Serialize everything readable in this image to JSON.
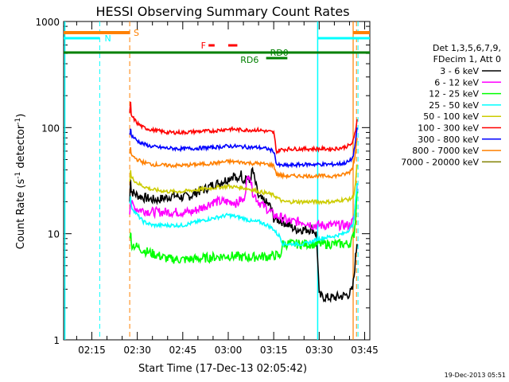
{
  "chart_data": {
    "type": "line",
    "title": "HESSI Observing Summary Count Rates",
    "xlabel": "Start Time (17-Dec-13 02:05:42)",
    "ylabel_main": "Count Rate (s",
    "ylabel_sup1": "-1",
    "ylabel_mid": " detector",
    "ylabel_sup2": "-1",
    "ylabel_end": ")",
    "yscale": "log",
    "ylim": [
      1,
      1000
    ],
    "xlim_minutes": [
      5.7,
      106.7
    ],
    "xticks": [
      {
        "m": 15,
        "label": "02:15"
      },
      {
        "m": 30,
        "label": "02:30"
      },
      {
        "m": 45,
        "label": "02:45"
      },
      {
        "m": 60,
        "label": "03:00"
      },
      {
        "m": 75,
        "label": "03:15"
      },
      {
        "m": 90,
        "label": "03:30"
      },
      {
        "m": 105,
        "label": "03:45"
      }
    ],
    "yticks": [
      {
        "v": 1,
        "label": "1"
      },
      {
        "v": 10,
        "label": "10"
      },
      {
        "v": 100,
        "label": "100"
      },
      {
        "v": 1000,
        "label": "1000"
      }
    ],
    "legend": {
      "header1": "Det 1,3,5,6,7,9,",
      "header2": "FDecim 1, Att 0",
      "placement": "right"
    },
    "footer_date": "19-Dec-2013 05:51",
    "series": [
      {
        "name": "3 - 6 keV",
        "color": "#000000",
        "x": [
          27.5,
          27.8,
          28,
          29,
          30,
          32,
          35,
          37,
          40,
          42,
          45,
          48,
          50,
          52,
          55,
          57,
          60,
          62,
          63,
          64,
          65,
          66,
          67,
          68,
          70,
          72,
          73,
          74,
          75,
          78,
          80,
          82,
          85,
          87,
          88,
          89,
          89.5,
          90,
          92,
          95,
          98,
          100,
          101,
          101.5,
          102,
          102.5
        ],
        "y": [
          20,
          35,
          25,
          24,
          23,
          22,
          21,
          21,
          22,
          23,
          22,
          23,
          25,
          26,
          29,
          30,
          33,
          36,
          30,
          38,
          32,
          35,
          30,
          40,
          22,
          20,
          19,
          18,
          14,
          13,
          12,
          11,
          11,
          11,
          11,
          10,
          6,
          2.6,
          2.5,
          2.5,
          2.6,
          2.7,
          3,
          4,
          6,
          8
        ]
      },
      {
        "name": "6 - 12 keV",
        "color": "#ff00ff",
        "x": [
          27.5,
          27.8,
          28,
          30,
          35,
          40,
          45,
          48,
          50,
          52,
          55,
          58,
          60,
          62,
          63,
          64,
          65,
          66,
          67,
          68,
          70,
          73,
          75,
          78,
          80,
          82,
          85,
          88,
          90,
          95,
          98,
          100,
          101,
          101.5,
          102,
          102.5
        ],
        "y": [
          16,
          22,
          19,
          17,
          16,
          16,
          16,
          16,
          17,
          18,
          20,
          20,
          20,
          20,
          19,
          21,
          20,
          30,
          38,
          25,
          20,
          17,
          15,
          14,
          13,
          13,
          13,
          12,
          12,
          12,
          12,
          12,
          13,
          14,
          20,
          28
        ]
      },
      {
        "name": "12 - 25 keV",
        "color": "#00ff00",
        "x": [
          27.5,
          27.8,
          28,
          30,
          32,
          35,
          40,
          45,
          50,
          55,
          60,
          65,
          68,
          70,
          73,
          75,
          76,
          77,
          78,
          80,
          85,
          88,
          90,
          95,
          98,
          100,
          101,
          101.5,
          102,
          102.5
        ],
        "y": [
          9,
          11,
          8,
          7.5,
          7,
          6.5,
          5.8,
          5.7,
          5.8,
          6,
          6.2,
          6,
          6,
          6.1,
          6.1,
          6.2,
          6.3,
          6,
          8,
          8,
          8,
          8,
          8,
          8,
          8,
          8,
          9,
          10,
          14,
          25
        ]
      },
      {
        "name": "25 - 50 keV",
        "color": "#00ffff",
        "x": [
          27.5,
          27.8,
          28,
          30,
          32,
          35,
          40,
          45,
          50,
          55,
          60,
          65,
          68,
          70,
          73,
          75,
          76,
          77,
          78,
          80,
          85,
          88,
          90,
          95,
          98,
          100,
          101,
          101.5,
          102,
          102.5
        ],
        "y": [
          20,
          22,
          18,
          15,
          13,
          12,
          12,
          12,
          13,
          14,
          15,
          14,
          13,
          13,
          12,
          11,
          10,
          9.5,
          8,
          8,
          8,
          8.5,
          9,
          9.5,
          10,
          11,
          12,
          14,
          20,
          30
        ]
      },
      {
        "name": "50 - 100 keV",
        "color": "#cccc00",
        "x": [
          27.5,
          27.8,
          28,
          30,
          32,
          35,
          40,
          45,
          50,
          55,
          60,
          65,
          68,
          70,
          73,
          75,
          76,
          77,
          78,
          80,
          85,
          88,
          90,
          95,
          98,
          100,
          101,
          101.5,
          102,
          102.5
        ],
        "y": [
          30,
          40,
          34,
          30,
          28,
          26,
          25,
          25,
          26,
          27,
          28,
          27,
          26,
          25,
          24,
          23,
          22,
          21,
          20,
          20,
          20,
          20,
          20,
          20,
          21,
          21,
          22,
          24,
          30,
          45
        ]
      },
      {
        "name": "100 - 300 keV",
        "color": "#ff0000",
        "x": [
          27.5,
          27.8,
          28,
          30,
          32,
          35,
          40,
          45,
          50,
          55,
          60,
          65,
          68,
          70,
          73,
          75,
          76,
          77,
          78,
          80,
          85,
          88,
          90,
          95,
          98,
          100,
          101,
          101.5,
          102,
          102.5
        ],
        "y": [
          140,
          170,
          130,
          110,
          100,
          95,
          90,
          90,
          92,
          93,
          97,
          95,
          95,
          95,
          92,
          90,
          58,
          62,
          62,
          63,
          63,
          63,
          63,
          63,
          65,
          68,
          72,
          80,
          95,
          120
        ]
      },
      {
        "name": "300 - 800 keV",
        "color": "#0000ff",
        "x": [
          27.5,
          27.8,
          28,
          30,
          32,
          35,
          40,
          45,
          50,
          55,
          60,
          65,
          68,
          70,
          73,
          75,
          76,
          77,
          78,
          80,
          85,
          88,
          90,
          95,
          98,
          100,
          101,
          101.5,
          102,
          102.5
        ],
        "y": [
          85,
          100,
          85,
          75,
          70,
          66,
          64,
          63,
          64,
          65,
          67,
          66,
          65,
          65,
          63,
          60,
          45,
          44,
          44,
          44,
          45,
          45,
          45,
          45,
          46,
          48,
          52,
          60,
          75,
          100
        ]
      },
      {
        "name": "800 - 7000 keV",
        "color": "#ff8000",
        "x": [
          27.5,
          27.8,
          28,
          30,
          32,
          35,
          40,
          45,
          50,
          55,
          60,
          65,
          68,
          70,
          73,
          75,
          76,
          77,
          78,
          80,
          85,
          88,
          90,
          95,
          98,
          100,
          101,
          101.5,
          102,
          102.5
        ],
        "y": [
          55,
          65,
          55,
          50,
          47,
          45,
          44,
          44,
          45,
          46,
          48,
          47,
          46,
          46,
          45,
          44,
          36,
          36,
          35,
          35,
          35,
          35,
          35,
          35,
          36,
          38,
          42,
          48,
          60,
          80
        ]
      },
      {
        "name": "7000 - 20000 keV",
        "color": "#808000",
        "x": [],
        "y": []
      }
    ],
    "annotations": {
      "S": "S",
      "N": "N",
      "F": "F",
      "RD0": "RD0",
      "RD6": "RD6"
    }
  }
}
